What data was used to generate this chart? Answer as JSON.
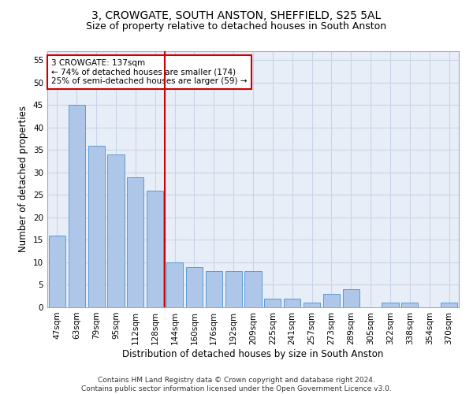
{
  "title": "3, CROWGATE, SOUTH ANSTON, SHEFFIELD, S25 5AL",
  "subtitle": "Size of property relative to detached houses in South Anston",
  "xlabel": "Distribution of detached houses by size in South Anston",
  "ylabel": "Number of detached properties",
  "footnote": "Contains HM Land Registry data © Crown copyright and database right 2024.\nContains public sector information licensed under the Open Government Licence v3.0.",
  "categories": [
    "47sqm",
    "63sqm",
    "79sqm",
    "95sqm",
    "112sqm",
    "128sqm",
    "144sqm",
    "160sqm",
    "176sqm",
    "192sqm",
    "209sqm",
    "225sqm",
    "241sqm",
    "257sqm",
    "273sqm",
    "289sqm",
    "305sqm",
    "322sqm",
    "338sqm",
    "354sqm",
    "370sqm"
  ],
  "values": [
    16,
    45,
    36,
    34,
    29,
    26,
    10,
    9,
    8,
    8,
    8,
    2,
    2,
    1,
    3,
    4,
    0,
    1,
    1,
    0,
    1
  ],
  "bar_color": "#aec6e8",
  "bar_edge_color": "#5b9bd5",
  "grid_color": "#c8d4e8",
  "background_color": "#e8eef7",
  "vline_x": 5.5,
  "vline_color": "#cc0000",
  "annotation_text": "3 CROWGATE: 137sqm\n← 74% of detached houses are smaller (174)\n25% of semi-detached houses are larger (59) →",
  "annotation_box_color": "#ffffff",
  "annotation_box_edge": "#cc0000",
  "ylim": [
    0,
    57
  ],
  "yticks": [
    0,
    5,
    10,
    15,
    20,
    25,
    30,
    35,
    40,
    45,
    50,
    55
  ],
  "title_fontsize": 10,
  "subtitle_fontsize": 9,
  "xlabel_fontsize": 8.5,
  "ylabel_fontsize": 8.5,
  "tick_fontsize": 7.5,
  "annotation_fontsize": 7.5,
  "footnote_fontsize": 6.5
}
